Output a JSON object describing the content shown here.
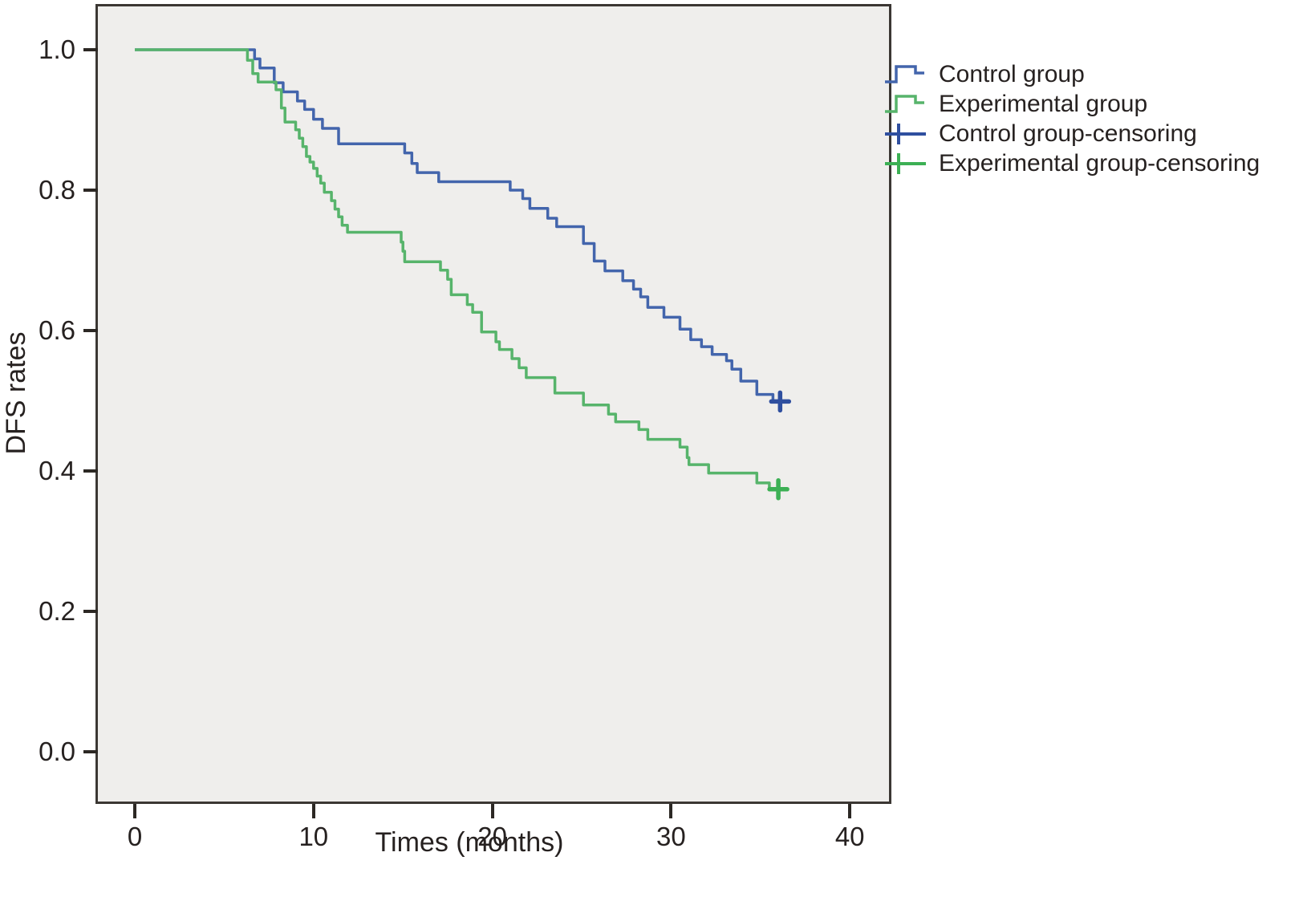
{
  "figure": {
    "title": "",
    "ylabel": "DFS rates",
    "xlabel": "Times (months)"
  },
  "style": {
    "plot_background": "#efeeec",
    "axis_color": "#3b3733",
    "text_color": "#262120",
    "control_blue": "#4365ac",
    "experimental_green": "#57b46b"
  },
  "legend": {
    "items": [
      {
        "label": "Control group",
        "type": "step-line",
        "color": "#4365ac"
      },
      {
        "label": "Experimental group",
        "type": "step-line",
        "color": "#57b46b"
      },
      {
        "label": "Control group-censoring",
        "type": "plus",
        "color": "#2f4f9f"
      },
      {
        "label": "Experimental group-censoring",
        "type": "plus",
        "color": "#3cb054"
      }
    ]
  },
  "chart_data": {
    "type": "line",
    "subtype": "kaplan-meier-step",
    "title": "",
    "xlabel": "Times (months)",
    "ylabel": "DFS rates",
    "xlim": [
      0,
      42
    ],
    "ylim": [
      0,
      1.05
    ],
    "grid": false,
    "legend_position": "upper-right-outside",
    "x_ticks": [
      {
        "v": 0,
        "label": "0"
      },
      {
        "v": 10,
        "label": "10"
      },
      {
        "v": 20,
        "label": "20"
      },
      {
        "v": 30,
        "label": "30"
      },
      {
        "v": 40,
        "label": "40"
      }
    ],
    "y_ticks": [
      {
        "v": 1.0,
        "label": "1.0"
      },
      {
        "v": 0.8,
        "label": "0.8"
      },
      {
        "v": 0.6,
        "label": "0.6"
      },
      {
        "v": 0.4,
        "label": "0.4"
      },
      {
        "v": 0.2,
        "label": "0.2"
      },
      {
        "v": 0.0,
        "label": "0.0"
      }
    ],
    "series": [
      {
        "name": "Control group",
        "color": "#4365ac",
        "censor_color": "#2f4f9f",
        "censor": {
          "t": 36.1,
          "v": 0.499
        },
        "steps": [
          [
            0,
            1.0
          ],
          [
            6.7,
            0.987
          ],
          [
            7.0,
            0.974
          ],
          [
            7.8,
            0.953
          ],
          [
            8.3,
            0.94
          ],
          [
            9.1,
            0.927
          ],
          [
            9.5,
            0.915
          ],
          [
            10.0,
            0.901
          ],
          [
            10.5,
            0.888
          ],
          [
            11.4,
            0.866
          ],
          [
            15.1,
            0.853
          ],
          [
            15.5,
            0.838
          ],
          [
            15.8,
            0.825
          ],
          [
            17.0,
            0.812
          ],
          [
            21.0,
            0.8
          ],
          [
            21.7,
            0.788
          ],
          [
            22.1,
            0.774
          ],
          [
            23.1,
            0.76
          ],
          [
            23.6,
            0.748
          ],
          [
            25.1,
            0.724
          ],
          [
            25.7,
            0.699
          ],
          [
            26.3,
            0.685
          ],
          [
            27.3,
            0.671
          ],
          [
            27.9,
            0.659
          ],
          [
            28.3,
            0.648
          ],
          [
            28.7,
            0.633
          ],
          [
            29.6,
            0.619
          ],
          [
            30.5,
            0.602
          ],
          [
            31.1,
            0.587
          ],
          [
            31.7,
            0.577
          ],
          [
            32.3,
            0.566
          ],
          [
            33.1,
            0.557
          ],
          [
            33.4,
            0.545
          ],
          [
            33.9,
            0.528
          ],
          [
            34.8,
            0.509
          ],
          [
            35.7,
            0.499
          ]
        ]
      },
      {
        "name": "Experimental group",
        "color": "#57b46b",
        "censor_color": "#3cb054",
        "censor": {
          "t": 36.0,
          "v": 0.374
        },
        "steps": [
          [
            0,
            1.0
          ],
          [
            6.3,
            0.985
          ],
          [
            6.6,
            0.966
          ],
          [
            6.9,
            0.954
          ],
          [
            7.9,
            0.943
          ],
          [
            8.2,
            0.917
          ],
          [
            8.4,
            0.897
          ],
          [
            9.0,
            0.886
          ],
          [
            9.2,
            0.874
          ],
          [
            9.4,
            0.862
          ],
          [
            9.6,
            0.848
          ],
          [
            9.8,
            0.84
          ],
          [
            10.0,
            0.831
          ],
          [
            10.2,
            0.82
          ],
          [
            10.4,
            0.81
          ],
          [
            10.6,
            0.797
          ],
          [
            11.0,
            0.785
          ],
          [
            11.2,
            0.773
          ],
          [
            11.4,
            0.762
          ],
          [
            11.6,
            0.75
          ],
          [
            11.9,
            0.74
          ],
          [
            14.9,
            0.726
          ],
          [
            15.0,
            0.713
          ],
          [
            15.1,
            0.698
          ],
          [
            17.1,
            0.686
          ],
          [
            17.5,
            0.673
          ],
          [
            17.7,
            0.651
          ],
          [
            18.6,
            0.637
          ],
          [
            18.9,
            0.626
          ],
          [
            19.4,
            0.598
          ],
          [
            20.2,
            0.584
          ],
          [
            20.4,
            0.573
          ],
          [
            21.1,
            0.56
          ],
          [
            21.5,
            0.547
          ],
          [
            21.9,
            0.533
          ],
          [
            23.5,
            0.511
          ],
          [
            25.1,
            0.494
          ],
          [
            26.5,
            0.481
          ],
          [
            26.9,
            0.47
          ],
          [
            28.2,
            0.459
          ],
          [
            28.7,
            0.445
          ],
          [
            30.5,
            0.434
          ],
          [
            30.9,
            0.419
          ],
          [
            31.0,
            0.409
          ],
          [
            32.1,
            0.397
          ],
          [
            34.8,
            0.383
          ],
          [
            35.5,
            0.374
          ]
        ]
      }
    ]
  }
}
